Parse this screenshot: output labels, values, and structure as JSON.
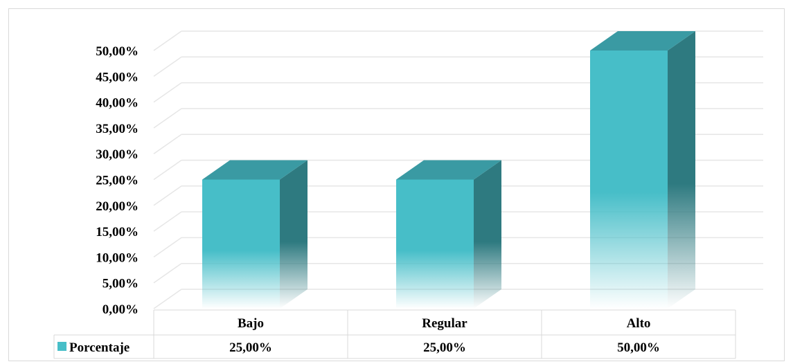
{
  "chart_data": {
    "type": "bar",
    "categories": [
      "Bajo",
      "Regular",
      "Alto"
    ],
    "series": [
      {
        "name": "Porcentaje",
        "values": [
          25,
          25,
          50
        ],
        "labels": [
          "25,00%",
          "25,00%",
          "50,00%"
        ]
      }
    ],
    "yticks": [
      "0,00%",
      "5,00%",
      "10,00%",
      "15,00%",
      "20,00%",
      "25,00%",
      "30,00%",
      "35,00%",
      "40,00%",
      "45,00%",
      "50,00%"
    ],
    "ylim": [
      0,
      50
    ],
    "title": "",
    "xlabel": "",
    "ylabel": "",
    "grid": true,
    "data_table": true,
    "legend": "data-table-left",
    "colors": {
      "bar_front": "#47bec8",
      "bar_top": "#3a9aa3",
      "bar_side": "#2e7a80",
      "grid": "#e6e6e6",
      "table_border": "#d9d9d9"
    }
  }
}
